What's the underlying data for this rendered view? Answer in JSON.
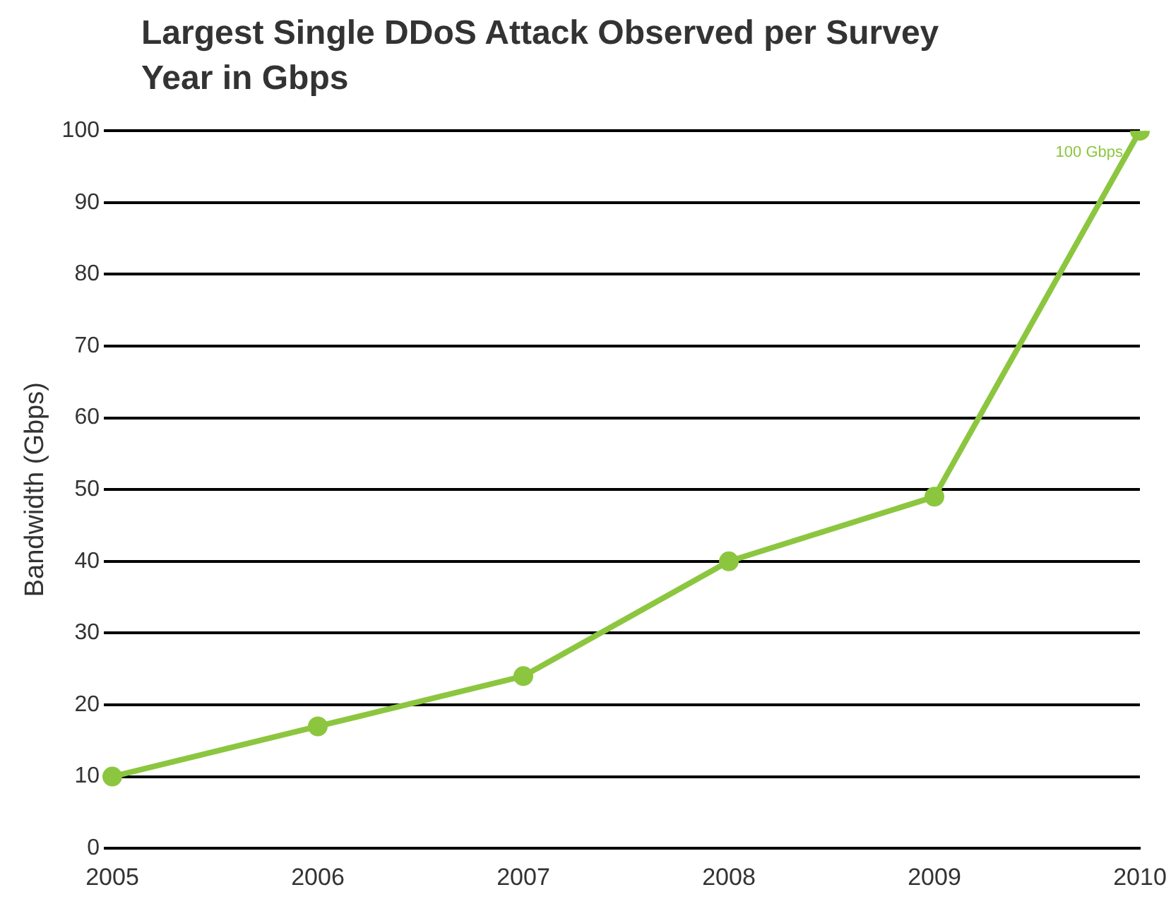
{
  "chart_data": {
    "type": "line",
    "title": "Largest Single DDoS Attack Observed per Survey Year in Gbps",
    "ylabel": "Bandwidth (Gbps)",
    "categories": [
      "2005",
      "2006",
      "2007",
      "2008",
      "2009",
      "2010"
    ],
    "series": [
      {
        "color": "#8cc63f",
        "values": [
          10,
          17,
          24,
          40,
          49,
          100
        ]
      }
    ],
    "ylim": [
      0,
      100
    ],
    "yticks": [
      0,
      10,
      20,
      30,
      40,
      50,
      60,
      70,
      80,
      90,
      100
    ],
    "grid": "y",
    "legend": false,
    "marker": "circle",
    "line_style": "solid",
    "annotations": [
      {
        "text": "100 Gbps",
        "x": "2010",
        "y": 100
      }
    ]
  }
}
